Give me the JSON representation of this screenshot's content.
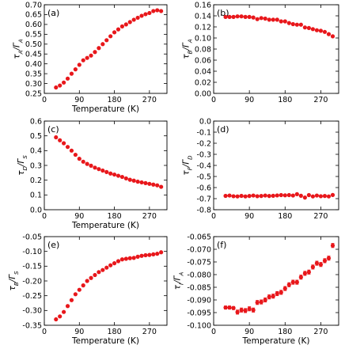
{
  "chart_data": [
    {
      "panel_label": "(a)",
      "type": "scatter",
      "xlabel": "Temperature (K)",
      "ylabel": "τ_A/Γ_A",
      "xlim": [
        0,
        315
      ],
      "ylim": [
        0.25,
        0.7
      ],
      "xticks": [
        "0",
        "90",
        "180",
        "270"
      ],
      "xtick_values": [
        0,
        90,
        180,
        270
      ],
      "yticks": [
        "0.25",
        "0.30",
        "0.35",
        "0.40",
        "0.45",
        "0.50",
        "0.55",
        "0.60",
        "0.65",
        "0.70"
      ],
      "ytick_values": [
        0.25,
        0.3,
        0.35,
        0.4,
        0.45,
        0.5,
        0.55,
        0.6,
        0.65,
        0.7
      ],
      "x": [
        30,
        40,
        50,
        60,
        70,
        80,
        90,
        100,
        110,
        120,
        130,
        140,
        150,
        160,
        170,
        180,
        190,
        200,
        210,
        220,
        230,
        240,
        250,
        260,
        270,
        280,
        290,
        300
      ],
      "y": [
        0.28,
        0.29,
        0.305,
        0.325,
        0.35,
        0.372,
        0.395,
        0.418,
        0.43,
        0.442,
        0.46,
        0.48,
        0.5,
        0.52,
        0.54,
        0.56,
        0.575,
        0.59,
        0.6,
        0.612,
        0.624,
        0.634,
        0.644,
        0.652,
        0.658,
        0.668,
        0.672,
        0.668
      ],
      "errorbars": false
    },
    {
      "panel_label": "(b)",
      "type": "scatter",
      "xlabel": "",
      "ylabel": "τ_B/Γ_A",
      "xlim": [
        0,
        315
      ],
      "ylim": [
        0.0,
        0.16
      ],
      "xticks": [
        "0",
        "90",
        "180",
        "270"
      ],
      "xtick_values": [
        0,
        90,
        180,
        270
      ],
      "yticks": [
        "0.00",
        "0.02",
        "0.04",
        "0.06",
        "0.08",
        "0.10",
        "0.12",
        "0.14",
        "0.16"
      ],
      "ytick_values": [
        0.0,
        0.02,
        0.04,
        0.06,
        0.08,
        0.1,
        0.12,
        0.14,
        0.16
      ],
      "x": [
        30,
        40,
        50,
        60,
        70,
        80,
        90,
        100,
        110,
        120,
        130,
        140,
        150,
        160,
        170,
        180,
        190,
        200,
        210,
        220,
        230,
        240,
        250,
        260,
        270,
        280,
        290,
        300
      ],
      "y": [
        0.138,
        0.138,
        0.138,
        0.139,
        0.139,
        0.138,
        0.138,
        0.137,
        0.134,
        0.136,
        0.135,
        0.133,
        0.133,
        0.133,
        0.13,
        0.13,
        0.127,
        0.125,
        0.124,
        0.124,
        0.119,
        0.118,
        0.116,
        0.114,
        0.113,
        0.111,
        0.107,
        0.103
      ],
      "errorbars": false
    },
    {
      "panel_label": "(c)",
      "type": "scatter",
      "xlabel": "Temperature (K)",
      "ylabel": "τ_D/Γ_S",
      "xlim": [
        0,
        315
      ],
      "ylim": [
        0.0,
        0.6
      ],
      "xticks": [
        "0",
        "90",
        "180",
        "270"
      ],
      "xtick_values": [
        0,
        90,
        180,
        270
      ],
      "yticks": [
        "0.0",
        "0.1",
        "0.2",
        "0.3",
        "0.4",
        "0.5",
        "0.6"
      ],
      "ytick_values": [
        0.0,
        0.1,
        0.2,
        0.3,
        0.4,
        0.5,
        0.6
      ],
      "x": [
        30,
        40,
        50,
        60,
        70,
        80,
        90,
        100,
        110,
        120,
        130,
        140,
        150,
        160,
        170,
        180,
        190,
        200,
        210,
        220,
        230,
        240,
        250,
        260,
        270,
        280,
        290,
        300
      ],
      "y": [
        0.49,
        0.47,
        0.45,
        0.425,
        0.4,
        0.372,
        0.345,
        0.325,
        0.31,
        0.298,
        0.285,
        0.275,
        0.265,
        0.255,
        0.245,
        0.238,
        0.23,
        0.222,
        0.212,
        0.203,
        0.197,
        0.19,
        0.185,
        0.18,
        0.175,
        0.17,
        0.165,
        0.155
      ],
      "errorbars": false
    },
    {
      "panel_label": "(d)",
      "type": "scatter",
      "xlabel": "",
      "ylabel": "τ_F/Γ_D",
      "xlim": [
        0,
        315
      ],
      "ylim": [
        -0.8,
        0.0
      ],
      "xticks": [
        "0",
        "90",
        "180",
        "270"
      ],
      "xtick_values": [
        0,
        90,
        180,
        270
      ],
      "yticks": [
        "-0.8",
        "-0.7",
        "-0.6",
        "-0.5",
        "-0.4",
        "-0.3",
        "-0.2",
        "-0.1",
        "0.0"
      ],
      "ytick_values": [
        -0.8,
        -0.7,
        -0.6,
        -0.5,
        -0.4,
        -0.3,
        -0.2,
        -0.1,
        0.0
      ],
      "x": [
        30,
        40,
        50,
        60,
        70,
        80,
        90,
        100,
        110,
        120,
        130,
        140,
        150,
        160,
        170,
        180,
        190,
        200,
        210,
        220,
        230,
        240,
        250,
        260,
        270,
        280,
        290,
        300
      ],
      "y": [
        -0.675,
        -0.672,
        -0.678,
        -0.68,
        -0.675,
        -0.68,
        -0.676,
        -0.672,
        -0.678,
        -0.676,
        -0.672,
        -0.676,
        -0.674,
        -0.671,
        -0.668,
        -0.67,
        -0.668,
        -0.672,
        -0.66,
        -0.674,
        -0.69,
        -0.668,
        -0.68,
        -0.672,
        -0.678,
        -0.676,
        -0.68,
        -0.667
      ],
      "errorbars": false
    },
    {
      "panel_label": "(e)",
      "type": "scatter",
      "xlabel": "Temperature (K)",
      "ylabel": "τ_B/Γ_S",
      "xlim": [
        0,
        315
      ],
      "ylim": [
        -0.35,
        -0.05
      ],
      "xticks": [
        "0",
        "90",
        "180",
        "270"
      ],
      "xtick_values": [
        0,
        90,
        180,
        270
      ],
      "yticks": [
        "-0.35",
        "-0.30",
        "-0.25",
        "-0.20",
        "-0.15",
        "-0.10",
        "-0.05"
      ],
      "ytick_values": [
        -0.35,
        -0.3,
        -0.25,
        -0.2,
        -0.15,
        -0.1,
        -0.05
      ],
      "x": [
        30,
        40,
        50,
        60,
        70,
        80,
        90,
        100,
        110,
        120,
        130,
        140,
        150,
        160,
        170,
        180,
        190,
        200,
        210,
        220,
        230,
        240,
        250,
        260,
        270,
        280,
        290,
        300
      ],
      "y": [
        -0.33,
        -0.32,
        -0.305,
        -0.285,
        -0.265,
        -0.245,
        -0.23,
        -0.215,
        -0.2,
        -0.19,
        -0.18,
        -0.17,
        -0.163,
        -0.155,
        -0.147,
        -0.14,
        -0.133,
        -0.127,
        -0.125,
        -0.123,
        -0.122,
        -0.118,
        -0.115,
        -0.113,
        -0.112,
        -0.11,
        -0.108,
        -0.103
      ],
      "errorbars": false
    },
    {
      "panel_label": "(f)",
      "type": "scatter",
      "xlabel": "Temperature (K)",
      "ylabel": "τ_I/Γ_A",
      "xlim": [
        0,
        315
      ],
      "ylim": [
        -0.1,
        -0.065
      ],
      "xticks": [
        "0",
        "90",
        "180",
        "270"
      ],
      "xtick_values": [
        0,
        90,
        180,
        270
      ],
      "yticks": [
        "-0.100",
        "-0.095",
        "-0.090",
        "-0.085",
        "-0.080",
        "-0.075",
        "-0.070",
        "-0.065"
      ],
      "ytick_values": [
        -0.1,
        -0.095,
        -0.09,
        -0.085,
        -0.08,
        -0.075,
        -0.07,
        -0.065
      ],
      "x": [
        30,
        40,
        50,
        60,
        70,
        80,
        90,
        100,
        110,
        120,
        130,
        140,
        150,
        160,
        170,
        180,
        190,
        200,
        210,
        220,
        230,
        240,
        250,
        260,
        270,
        280,
        290,
        300
      ],
      "y": [
        -0.093,
        -0.093,
        -0.0932,
        -0.0948,
        -0.094,
        -0.0942,
        -0.0935,
        -0.094,
        -0.091,
        -0.0908,
        -0.09,
        -0.0888,
        -0.0885,
        -0.0875,
        -0.087,
        -0.0855,
        -0.084,
        -0.083,
        -0.083,
        -0.081,
        -0.0795,
        -0.079,
        -0.077,
        -0.0755,
        -0.076,
        -0.0745,
        -0.0735,
        -0.0685
      ],
      "yerr": [
        0.0006,
        0.0006,
        0.0006,
        0.0008,
        0.0008,
        0.0008,
        0.0008,
        0.0008,
        0.0008,
        0.0008,
        0.0008,
        0.0008,
        0.0008,
        0.0008,
        0.0008,
        0.0008,
        0.0008,
        0.0008,
        0.0008,
        0.0008,
        0.0008,
        0.0008,
        0.0008,
        0.0008,
        0.0008,
        0.0008,
        0.0008,
        0.0008
      ],
      "errorbars": true
    }
  ],
  "colors": {
    "marker": "#e8171b",
    "axis": "#000000"
  }
}
